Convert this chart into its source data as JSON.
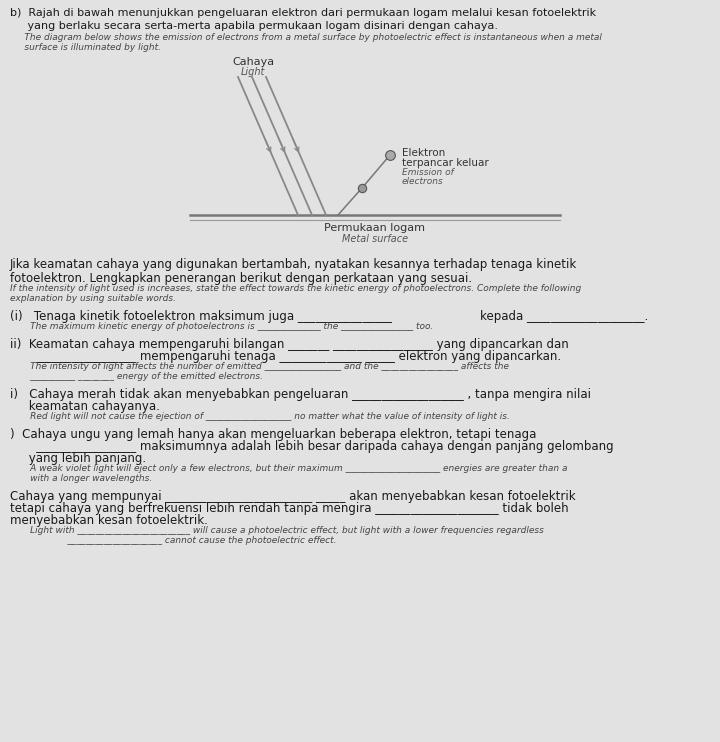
{
  "bg_color": "#c8c8c8",
  "page_bg": "#e2e2e2",
  "header1_malay": "b)  Rajah di bawah menunjukkan pengeluaran elektron dari permukaan logam melalui kesan fotoelektrik",
  "header1_malay2": "     yang berlaku secara serta-merta apabila permukaan logam disinari dengan cahaya.",
  "header1_eng1": "     The diagram below shows the emission of electrons from a metal surface by photoelectric effect is instantaneous when a metal",
  "header1_eng2": "     surface is illuminated by light.",
  "cahaya": "Cahaya",
  "light": "Light",
  "elektron_line1": "Elektron",
  "elektron_line2": "terpancar keluar",
  "elektron_line3": "Emission of",
  "elektron_line4": "electrons",
  "permukaan": "Permukaan logam",
  "metal_surface": "Metal surface",
  "q_malay1": "Jika keamatan cahaya yang digunakan bertambah, nyatakan kesannya terhadap tenaga kinetik",
  "q_malay2": "fotoelektron. Lengkapkan penerangan berikut dengan perkataan yang sesuai.",
  "q_eng1": "If the intensity of light used is increases, state the effect towards the kinetic energy of photoelectrons. Complete the following",
  "q_eng2": "explanation by using suitable words.",
  "i_m1": "(i)   Tenaga kinetik fotoelektron maksimum juga _______________",
  "i_m1b": " kepada ____________________.",
  "i_e1": "       The maximum kinetic energy of photoelectrons is _______________ the",
  "i_e1b": " _______________ too.",
  "ii_m1": "ii)  Keamatan cahaya mempengaruhi bilangan _______ _________________ yang dipancarkan dan",
  "ii_m2": "       _________________ mempengaruhi tenaga ______________ _____ elektron yang dipancarkan.",
  "ii_e1": "       The intensity of light affects the number of emitted _________________ and the _________________ affects the",
  "ii_e2": "       __________ ________ energy of the emitted electrons.",
  "iii_m1": "i)   Cahaya merah tidak akan menyebabkan pengeluaran ___________________ , tanpa mengira nilai",
  "iii_m2": "     keamatan cahayanya.",
  "iii_e1": "       Red light will not cause the ejection of ___________________ no matter what the value of intensity of light is.",
  "iv_m1": ")  Cahaya ungu yang lemah hanya akan mengeluarkan beberapa elektron, tetapi tenaga",
  "iv_m2": "       _________________ maksimumnya adalah lebih besar daripada cahaya dengan panjang gelombang",
  "iv_m3": "     yang lebih panjang.",
  "iv_e1": "       A weak violet light will eject only a few electrons, but their maximum _____________________ energies are greater than a",
  "iv_e2": "       with a longer wavelengths.",
  "v_m1": "Cahaya yang mempunyai _________________________ _____ akan menyebabkan kesan fotoelektrik",
  "v_m2": "tetapi cahaya yang berfrekuensi lebih rendah tanpa mengira _____________________ tidak boleh",
  "v_m3": "menyebabkan kesan fotoelektrik.",
  "v_e1": "       Light with _________________________ will cause a photoelectric effect, but light with a lower frequencies regardless",
  "v_e2": "                    _____________________ cannot cause the photoelectric effect."
}
